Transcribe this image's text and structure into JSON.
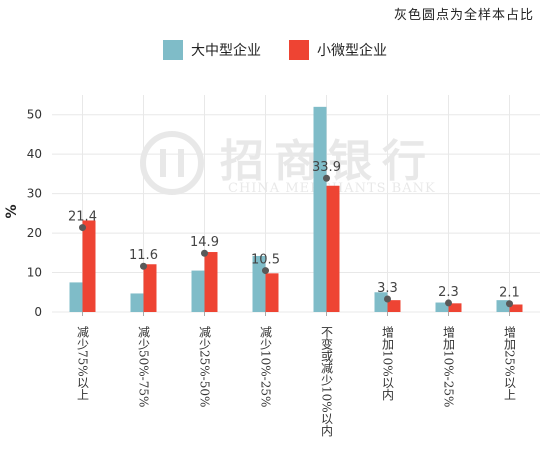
{
  "note": "灰色圆点为全样本占比",
  "watermark": {
    "cn": "招商银行",
    "en": "CHINA MERCHANTS BANK"
  },
  "colors": {
    "large_medium": "#7fbcc8",
    "small_micro": "#ee4433",
    "dot": "#595959",
    "grid": "#e8e8e8"
  },
  "chart_data": {
    "type": "bar",
    "ylabel": "%",
    "ylim": [
      0,
      55
    ],
    "yticks": [
      0,
      10,
      20,
      30,
      40,
      50
    ],
    "grid": true,
    "legend_position": "top-center",
    "categories": [
      "减少75%以上",
      "减少50%-75%",
      "减少25%-50%",
      "减少10%-25%",
      "不变或减少10%以内",
      "增加10%以内",
      "增加10%-25%",
      "增加25%以上"
    ],
    "series": [
      {
        "name": "大中型企业",
        "values": [
          7.5,
          4.7,
          10.5,
          14.2,
          52.0,
          5.0,
          2.4,
          3.0
        ]
      },
      {
        "name": "小微型企业",
        "values": [
          23.2,
          12.1,
          15.2,
          9.8,
          32.0,
          3.0,
          2.2,
          1.9
        ]
      }
    ],
    "overall": {
      "name": "全样本占比",
      "values": [
        21.4,
        11.6,
        14.9,
        10.5,
        33.9,
        3.3,
        2.3,
        2.1
      ],
      "labels": [
        "21.4",
        "11.6",
        "14.9",
        "10.5",
        "33.9",
        "3.3",
        "2.3",
        "2.1"
      ]
    }
  }
}
